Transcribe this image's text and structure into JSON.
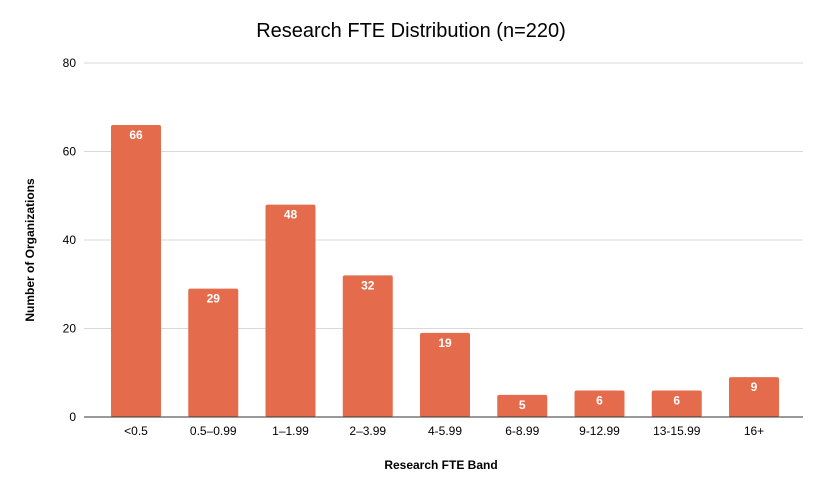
{
  "chart_data": {
    "type": "bar",
    "title": "Research FTE Distribution (n=220)",
    "xlabel": "Research FTE Band",
    "ylabel": "Number of Organizations",
    "categories": [
      "<0.5",
      "0.5–0.99",
      "1–1.99",
      "2–3.99",
      "4-5.99",
      "6-8.99",
      "9-12.99",
      "13-15.99",
      "16+"
    ],
    "values": [
      66,
      29,
      48,
      32,
      19,
      5,
      6,
      6,
      9
    ],
    "data_labels": [
      "66",
      "29",
      "48",
      "32",
      "19",
      "5",
      "6",
      "6",
      "9"
    ],
    "y_ticks": [
      0,
      20,
      40,
      60,
      80
    ],
    "y_tick_labels": [
      "0",
      "20",
      "40",
      "60",
      "80"
    ],
    "ylim": [
      0,
      80
    ],
    "grid": true,
    "legend": "none",
    "colors": {
      "bar": "#e46c4c",
      "grid": "#d9d9d9",
      "baseline": "#333333",
      "data_label": "#ffffff",
      "text": "#000000"
    }
  }
}
